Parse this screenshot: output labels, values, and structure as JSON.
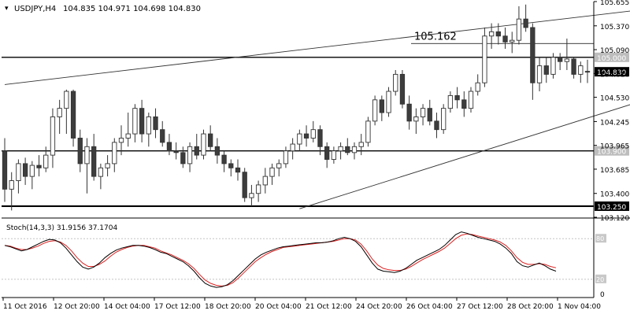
{
  "header": {
    "symbol": "USDJPY,H4",
    "ohlc": "104.835 104.971 104.698 104.830"
  },
  "chart_data": {
    "type": "candlestick",
    "price_axis": {
      "ticks": [
        "105.655",
        "105.370",
        "105.090",
        "104.810",
        "104.530",
        "104.245",
        "103.965",
        "103.685",
        "103.400",
        "103.120"
      ],
      "ylim": [
        103.12,
        105.655
      ]
    },
    "time_axis": {
      "labels": [
        "11 Oct 2016",
        "12 Oct 20:00",
        "14 Oct 04:00",
        "17 Oct 12:00",
        "18 Oct 20:00",
        "20 Oct 04:00",
        "21 Oct 12:00",
        "24 Oct 20:00",
        "26 Oct 04:00",
        "27 Oct 12:00",
        "28 Oct 20:00",
        "1 Nov 04:00"
      ]
    },
    "horizontal_lines": [
      {
        "price": 105.0,
        "label": "105.000",
        "style": "medium"
      },
      {
        "price": 103.9,
        "label": "103.900",
        "style": "medium"
      },
      {
        "price": 103.25,
        "label": "103.250",
        "style": "thick"
      },
      {
        "price": 105.162,
        "label": "105.162",
        "style": "thin"
      }
    ],
    "current_price": {
      "price": 104.83,
      "label": "104.830"
    },
    "trendlines": [
      {
        "from": [
          0,
          104.68
        ],
        "to": [
          103,
          105.655
        ]
      },
      {
        "from": [
          43,
          103.22
        ],
        "to": [
          110,
          104.92
        ]
      }
    ],
    "candles": [
      [
        103.9,
        104.05,
        103.3,
        103.45
      ],
      [
        103.45,
        103.65,
        103.2,
        103.55
      ],
      [
        103.55,
        103.8,
        103.4,
        103.75
      ],
      [
        103.75,
        103.82,
        103.5,
        103.6
      ],
      [
        103.6,
        103.78,
        103.45,
        103.73
      ],
      [
        103.73,
        103.85,
        103.6,
        103.7
      ],
      [
        103.7,
        103.95,
        103.65,
        103.85
      ],
      [
        103.85,
        104.4,
        103.7,
        104.3
      ],
      [
        104.3,
        104.5,
        104.1,
        104.4
      ],
      [
        104.4,
        104.62,
        104.1,
        104.6
      ],
      [
        104.6,
        104.62,
        103.95,
        104.05
      ],
      [
        104.05,
        104.15,
        103.65,
        103.75
      ],
      [
        103.75,
        104.05,
        103.4,
        103.95
      ],
      [
        103.95,
        104.1,
        103.55,
        103.6
      ],
      [
        103.6,
        103.75,
        103.45,
        103.7
      ],
      [
        103.7,
        103.85,
        103.6,
        103.75
      ],
      [
        103.75,
        104.05,
        103.65,
        104.0
      ],
      [
        104.0,
        104.2,
        103.85,
        104.05
      ],
      [
        104.05,
        104.35,
        103.95,
        104.1
      ],
      [
        104.1,
        104.45,
        104.0,
        104.4
      ],
      [
        104.4,
        104.5,
        104.0,
        104.1
      ],
      [
        104.1,
        104.35,
        103.95,
        104.3
      ],
      [
        104.3,
        104.4,
        104.05,
        104.15
      ],
      [
        104.15,
        104.25,
        103.95,
        104.0
      ],
      [
        104.0,
        104.1,
        103.85,
        103.9
      ],
      [
        103.9,
        104.0,
        103.8,
        103.88
      ],
      [
        103.88,
        103.95,
        103.7,
        103.75
      ],
      [
        103.75,
        104.0,
        103.65,
        103.95
      ],
      [
        103.95,
        104.1,
        103.8,
        103.85
      ],
      [
        103.85,
        104.15,
        103.8,
        104.1
      ],
      [
        104.1,
        104.2,
        103.9,
        103.95
      ],
      [
        103.95,
        104.05,
        103.75,
        103.85
      ],
      [
        103.85,
        103.9,
        103.65,
        103.75
      ],
      [
        103.75,
        103.8,
        103.6,
        103.7
      ],
      [
        103.7,
        103.8,
        103.55,
        103.65
      ],
      [
        103.65,
        103.7,
        103.3,
        103.35
      ],
      [
        103.35,
        103.5,
        103.25,
        103.4
      ],
      [
        103.4,
        103.55,
        103.3,
        103.5
      ],
      [
        103.5,
        103.7,
        103.4,
        103.6
      ],
      [
        103.6,
        103.75,
        103.5,
        103.7
      ],
      [
        103.7,
        103.8,
        103.6,
        103.75
      ],
      [
        103.75,
        103.95,
        103.7,
        103.9
      ],
      [
        103.9,
        104.05,
        103.8,
        103.98
      ],
      [
        103.98,
        104.15,
        103.9,
        104.1
      ],
      [
        104.1,
        104.2,
        103.95,
        104.05
      ],
      [
        104.05,
        104.25,
        104.0,
        104.15
      ],
      [
        104.15,
        104.2,
        103.85,
        103.95
      ],
      [
        103.95,
        104.0,
        103.7,
        103.8
      ],
      [
        103.8,
        103.95,
        103.75,
        103.9
      ],
      [
        103.9,
        104.0,
        103.8,
        103.95
      ],
      [
        103.95,
        104.05,
        103.85,
        103.88
      ],
      [
        103.88,
        104.0,
        103.8,
        103.95
      ],
      [
        103.95,
        104.1,
        103.85,
        104.0
      ],
      [
        104.0,
        104.3,
        103.95,
        104.25
      ],
      [
        104.25,
        104.55,
        104.2,
        104.5
      ],
      [
        104.5,
        104.55,
        104.25,
        104.35
      ],
      [
        104.35,
        104.65,
        104.3,
        104.6
      ],
      [
        104.6,
        104.85,
        104.55,
        104.8
      ],
      [
        104.8,
        104.85,
        104.4,
        104.45
      ],
      [
        104.45,
        104.55,
        104.15,
        104.25
      ],
      [
        104.25,
        104.4,
        104.1,
        104.3
      ],
      [
        104.3,
        104.45,
        104.2,
        104.4
      ],
      [
        104.4,
        104.5,
        104.2,
        104.25
      ],
      [
        104.25,
        104.35,
        104.05,
        104.15
      ],
      [
        104.15,
        104.45,
        104.1,
        104.4
      ],
      [
        104.4,
        104.6,
        104.35,
        104.55
      ],
      [
        104.55,
        104.65,
        104.4,
        104.5
      ],
      [
        104.5,
        104.6,
        104.3,
        104.4
      ],
      [
        104.4,
        104.65,
        104.35,
        104.6
      ],
      [
        104.6,
        104.8,
        104.55,
        104.7
      ],
      [
        104.7,
        105.35,
        104.65,
        105.25
      ],
      [
        105.25,
        105.4,
        105.1,
        105.3
      ],
      [
        105.3,
        105.4,
        105.15,
        105.25
      ],
      [
        105.25,
        105.35,
        105.1,
        105.18
      ],
      [
        105.18,
        105.3,
        105.05,
        105.2
      ],
      [
        105.2,
        105.6,
        105.15,
        105.45
      ],
      [
        105.45,
        105.62,
        105.3,
        105.35
      ],
      [
        105.35,
        105.4,
        104.5,
        104.7
      ],
      [
        104.7,
        105.0,
        104.6,
        104.9
      ],
      [
        104.9,
        105.0,
        104.7,
        104.8
      ],
      [
        104.8,
        105.05,
        104.75,
        105.0
      ],
      [
        105.0,
        105.05,
        104.85,
        104.95
      ],
      [
        104.95,
        105.22,
        104.85,
        104.98
      ],
      [
        104.98,
        105.0,
        104.75,
        104.8
      ],
      [
        104.8,
        104.95,
        104.7,
        104.9
      ],
      [
        104.835,
        104.971,
        104.698,
        104.83
      ]
    ],
    "stochastic": {
      "label": "Stoch(14,3,3) 31.9156 37.1704",
      "levels": [
        80,
        20
      ],
      "ylim": [
        0,
        100
      ],
      "main": [
        70,
        68,
        65,
        62,
        64,
        68,
        72,
        76,
        79,
        78,
        74,
        66,
        56,
        46,
        38,
        35,
        38,
        44,
        52,
        58,
        63,
        66,
        68,
        70,
        70,
        69,
        67,
        64,
        60,
        58,
        54,
        50,
        46,
        40,
        32,
        22,
        14,
        10,
        8,
        9,
        12,
        18,
        26,
        34,
        42,
        50,
        56,
        60,
        63,
        66,
        68,
        69,
        70,
        71,
        72,
        73,
        74,
        74,
        75,
        77,
        80,
        82,
        80,
        76,
        68,
        56,
        44,
        35,
        32,
        31,
        30,
        32,
        36,
        42,
        48,
        52,
        56,
        60,
        64,
        70,
        78,
        86,
        90,
        88,
        85,
        82,
        80,
        78,
        76,
        72,
        66,
        58,
        46,
        40,
        38,
        41,
        44,
        40,
        35,
        32
      ],
      "signal": [
        70,
        69,
        66,
        64,
        64,
        66,
        69,
        73,
        76,
        77,
        75,
        70,
        62,
        52,
        44,
        39,
        39,
        42,
        47,
        54,
        60,
        64,
        67,
        69,
        70,
        70,
        68,
        66,
        62,
        59,
        56,
        52,
        48,
        43,
        36,
        27,
        19,
        14,
        11,
        10,
        11,
        15,
        22,
        30,
        38,
        46,
        52,
        57,
        61,
        64,
        67,
        68,
        69,
        70,
        71,
        72,
        73,
        74,
        75,
        76,
        78,
        80,
        80,
        78,
        72,
        62,
        50,
        41,
        36,
        34,
        33,
        33,
        35,
        39,
        44,
        49,
        53,
        57,
        61,
        66,
        73,
        80,
        85,
        87,
        86,
        84,
        82,
        80,
        78,
        75,
        70,
        62,
        52,
        45,
        42,
        42,
        43,
        42,
        39,
        37
      ]
    }
  }
}
